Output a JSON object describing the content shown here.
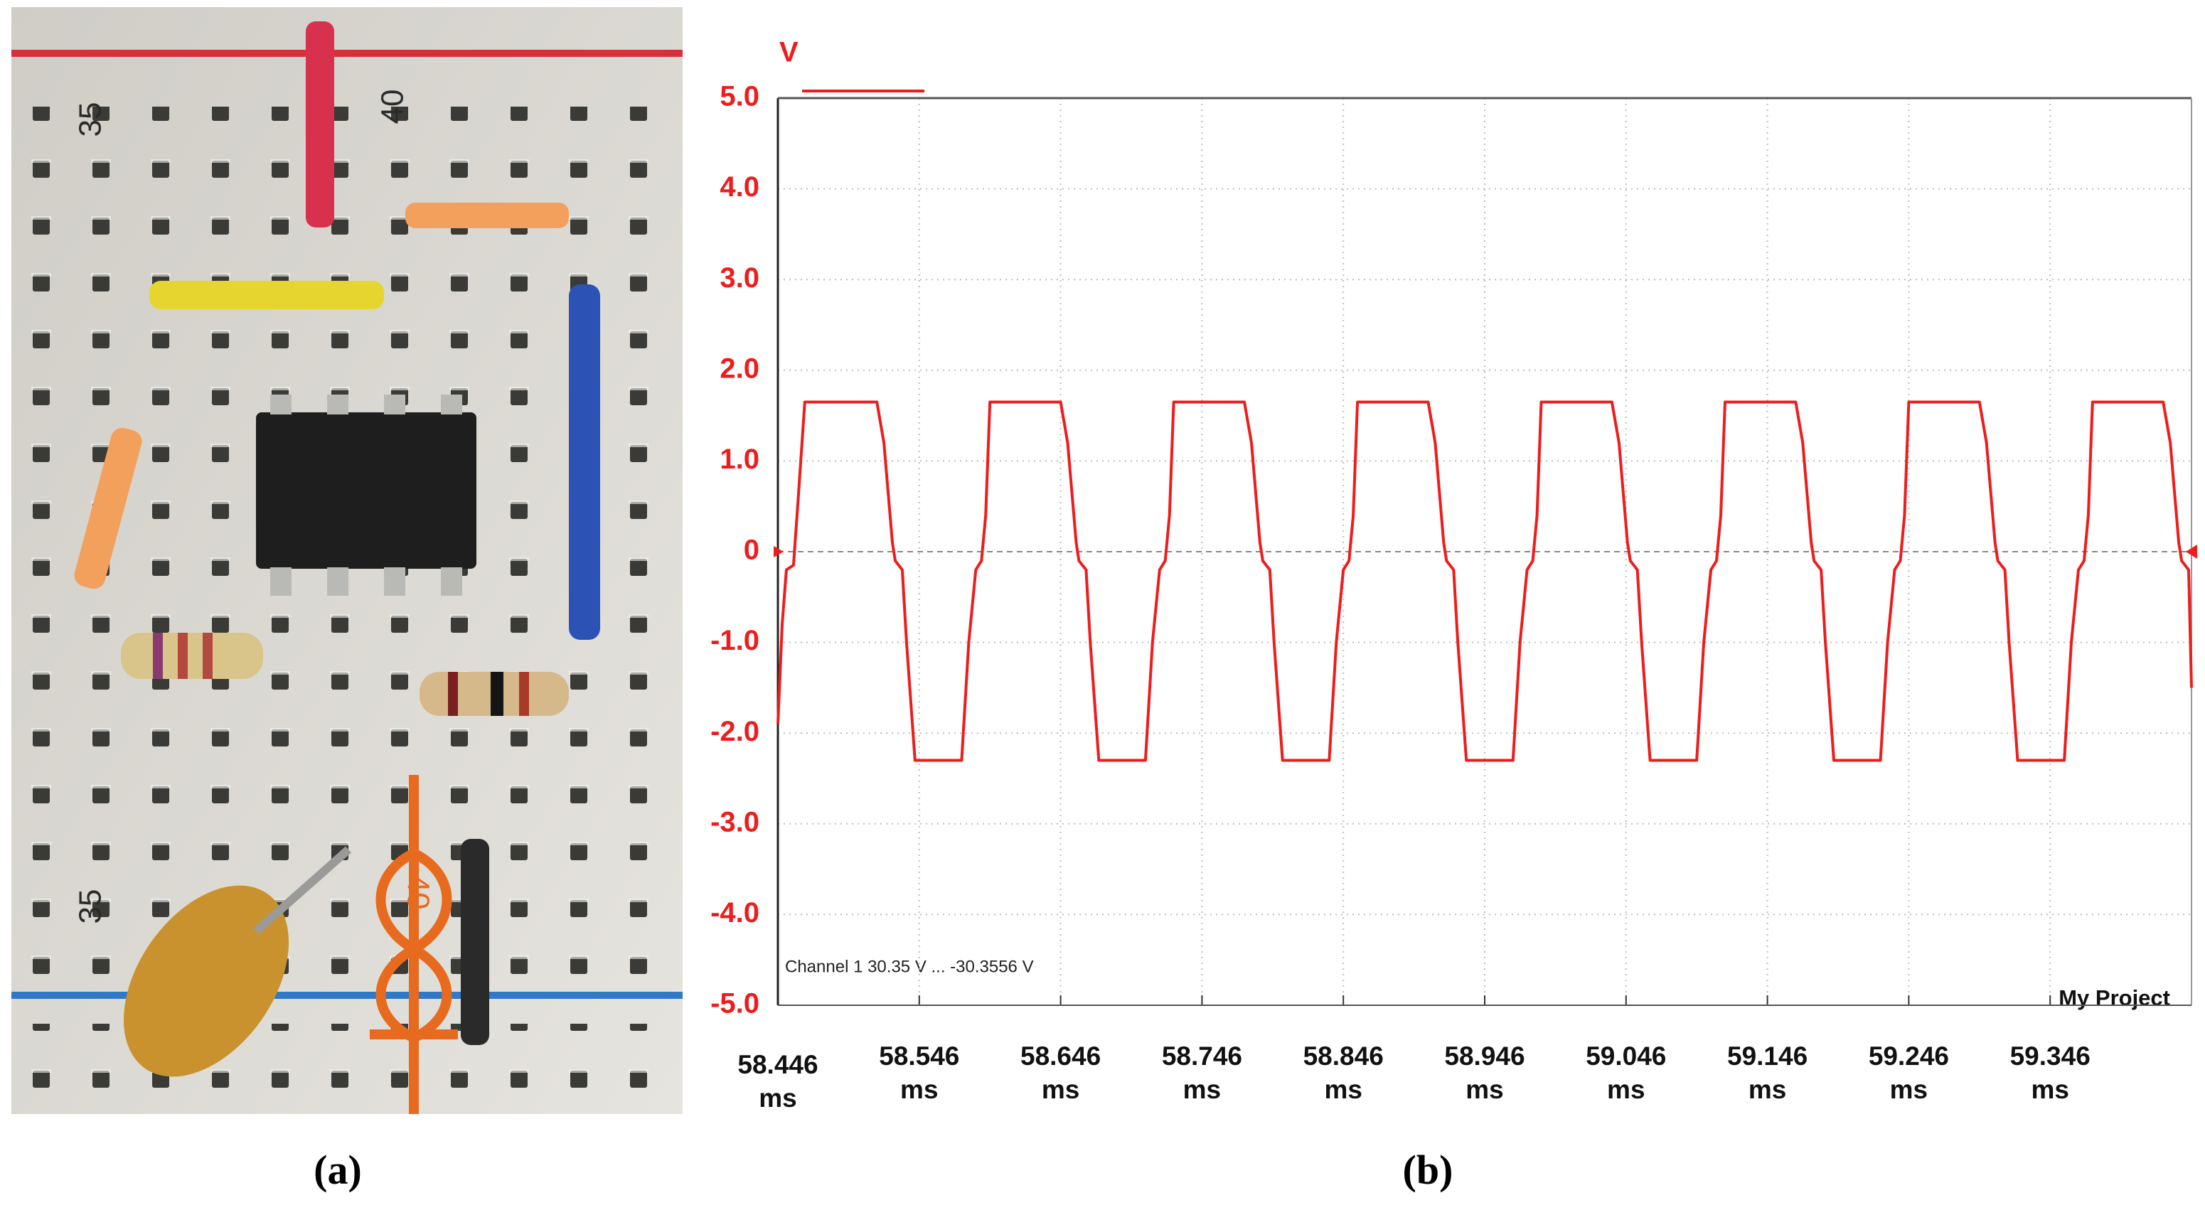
{
  "photo": {
    "labels": [
      "35",
      "40",
      "35",
      "40"
    ]
  },
  "panel_labels": {
    "a": "(a)",
    "b": "(b)"
  },
  "chart_data": {
    "type": "line",
    "y_label": "V",
    "annotations": {
      "channel": "Channel 1  30.35 V ... -30.3556 V",
      "project": "My Project"
    },
    "color": "#ee1c1c",
    "grid": true,
    "xlim": [
      58.446,
      59.446
    ],
    "xticks": [
      58.446,
      58.546,
      58.646,
      58.746,
      58.846,
      58.946,
      59.046,
      59.146,
      59.246,
      59.346
    ],
    "xtick_unit": "ms",
    "ylim": [
      -5,
      5
    ],
    "yticks": [
      {
        "value": 5,
        "label": "5.0"
      },
      {
        "value": 4,
        "label": "4.0"
      },
      {
        "value": 3,
        "label": "3.0"
      },
      {
        "value": 2,
        "label": "2.0"
      },
      {
        "value": 1,
        "label": "1.0"
      },
      0,
      {
        "value": -1,
        "label": "-1.0"
      },
      {
        "value": -2,
        "label": "-2.0"
      },
      {
        "value": -3,
        "label": "-3.0"
      },
      {
        "value": -4,
        "label": "-4.0"
      },
      {
        "value": -5,
        "label": "-5.0"
      }
    ],
    "x": [
      58.446,
      58.449,
      58.452,
      58.457,
      58.46,
      58.465,
      58.516,
      58.521,
      58.527,
      58.529,
      58.534,
      58.537,
      58.543,
      58.576,
      58.581,
      58.586,
      58.59,
      58.593,
      58.596,
      58.646,
      58.651,
      58.657,
      58.659,
      58.664,
      58.667,
      58.673,
      58.706,
      58.711,
      58.716,
      58.72,
      58.723,
      58.726,
      58.776,
      58.781,
      58.787,
      58.789,
      58.794,
      58.797,
      58.803,
      58.836,
      58.841,
      58.846,
      58.85,
      58.853,
      58.856,
      58.906,
      58.911,
      58.917,
      58.919,
      58.924,
      58.927,
      58.933,
      58.966,
      58.971,
      58.976,
      58.98,
      58.983,
      58.986,
      59.036,
      59.041,
      59.047,
      59.049,
      59.054,
      59.057,
      59.063,
      59.096,
      59.101,
      59.106,
      59.11,
      59.113,
      59.116,
      59.166,
      59.171,
      59.177,
      59.179,
      59.184,
      59.187,
      59.193,
      59.226,
      59.231,
      59.236,
      59.24,
      59.243,
      59.246,
      59.296,
      59.301,
      59.307,
      59.309,
      59.314,
      59.317,
      59.323,
      59.356,
      59.361,
      59.366,
      59.37,
      59.373,
      59.376,
      59.426,
      59.431,
      59.437,
      59.439,
      59.444,
      59.446
    ],
    "values": [
      -1.9,
      -0.8,
      -0.2,
      -0.15,
      0.5,
      1.65,
      1.65,
      1.2,
      0.1,
      -0.1,
      -0.2,
      -1.0,
      -2.3,
      -2.3,
      -1.0,
      -0.2,
      -0.1,
      0.4,
      1.65,
      1.65,
      1.2,
      0.1,
      -0.1,
      -0.2,
      -1.0,
      -2.3,
      -2.3,
      -1.0,
      -0.2,
      -0.1,
      0.4,
      1.65,
      1.65,
      1.2,
      0.1,
      -0.1,
      -0.2,
      -1.0,
      -2.3,
      -2.3,
      -1.0,
      -0.2,
      -0.1,
      0.4,
      1.65,
      1.65,
      1.2,
      0.1,
      -0.1,
      -0.2,
      -1.0,
      -2.3,
      -2.3,
      -1.0,
      -0.2,
      -0.1,
      0.4,
      1.65,
      1.65,
      1.2,
      0.1,
      -0.1,
      -0.2,
      -1.0,
      -2.3,
      -2.3,
      -1.0,
      -0.2,
      -0.1,
      0.4,
      1.65,
      1.65,
      1.2,
      0.1,
      -0.1,
      -0.2,
      -1.0,
      -2.3,
      -2.3,
      -1.0,
      -0.2,
      -0.1,
      0.4,
      1.65,
      1.65,
      1.2,
      0.1,
      -0.1,
      -0.2,
      -1.0,
      -2.3,
      -2.3,
      -1.0,
      -0.2,
      -0.1,
      0.4,
      1.65,
      1.65,
      1.2,
      0.1,
      -0.1,
      -0.2,
      -1.5
    ]
  }
}
